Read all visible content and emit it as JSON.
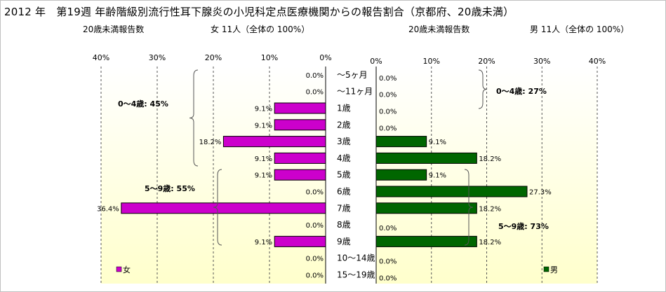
{
  "title": "2012 年　第19週 年齢階級別流行性耳下腺炎の小児科定点医療機関からの報告割合（京都府、20歳未満）",
  "left_header": {
    "count_label": "20歳未満報告数",
    "summary": "女  11人（全体の  100%）"
  },
  "right_header": {
    "count_label": "20歳未満報告数",
    "summary": "男  11人（全体の  100%）"
  },
  "colors": {
    "female": "#cc00cc",
    "male": "#006600",
    "plot_top": "#ffffff",
    "plot_bottom": "#ffffcc"
  },
  "chart_data": [
    {
      "type": "bar",
      "orientation": "horizontal",
      "direction": "right-to-left",
      "series": [
        {
          "name": "女",
          "values": [
            0.0,
            0.0,
            9.1,
            9.1,
            18.2,
            9.1,
            9.1,
            0.0,
            36.4,
            0.0,
            9.1,
            0.0,
            0.0
          ]
        }
      ],
      "categories": [
        "～5ヶ月",
        "～11ヶ月",
        "1歳",
        "2歳",
        "3歳",
        "4歳",
        "5歳",
        "6歳",
        "7歳",
        "8歳",
        "9歳",
        "10～14歳",
        "15～19歳"
      ],
      "data_labels": [
        "0.0%",
        "0.0%",
        "9.1%",
        "9.1%",
        "18.2%",
        "9.1%",
        "9.1%",
        "0.0%",
        "36.4%",
        "0.0%",
        "9.1%",
        "0.0%",
        "0.0%"
      ],
      "xlim": [
        0,
        40
      ],
      "ticks": [
        "0%",
        "10%",
        "20%",
        "30%",
        "40%"
      ],
      "annotations": [
        {
          "text": "0～4歳: 45%",
          "rows": [
            0,
            5
          ]
        },
        {
          "text": "5～9歳: 55%",
          "rows": [
            6,
            10
          ]
        }
      ],
      "legend": "bottom-left",
      "grid": true
    },
    {
      "type": "bar",
      "orientation": "horizontal",
      "direction": "left-to-right",
      "series": [
        {
          "name": "男",
          "values": [
            0.0,
            0.0,
            0.0,
            0.0,
            9.1,
            18.2,
            9.1,
            27.3,
            18.2,
            0.0,
            18.2,
            0.0,
            0.0
          ]
        }
      ],
      "categories": [
        "～5ヶ月",
        "～11ヶ月",
        "1歳",
        "2歳",
        "3歳",
        "4歳",
        "5歳",
        "6歳",
        "7歳",
        "8歳",
        "9歳",
        "10～14歳",
        "15～19歳"
      ],
      "data_labels": [
        "0.0%",
        "0.0%",
        "0.0%",
        "0.0%",
        "9.1%",
        "18.2%",
        "9.1%",
        "27.3%",
        "18.2%",
        "0.0%",
        "18.2%",
        "0.0%",
        "0.0%"
      ],
      "xlim": [
        0,
        40
      ],
      "ticks": [
        "0%",
        "10%",
        "20%",
        "30%",
        "40%"
      ],
      "annotations": [
        {
          "text": "0～4歳: 27%",
          "rows": [
            0,
            5
          ]
        },
        {
          "text": "5～9歳: 73%",
          "rows": [
            6,
            10
          ]
        }
      ],
      "legend": "bottom-right",
      "grid": true
    }
  ]
}
